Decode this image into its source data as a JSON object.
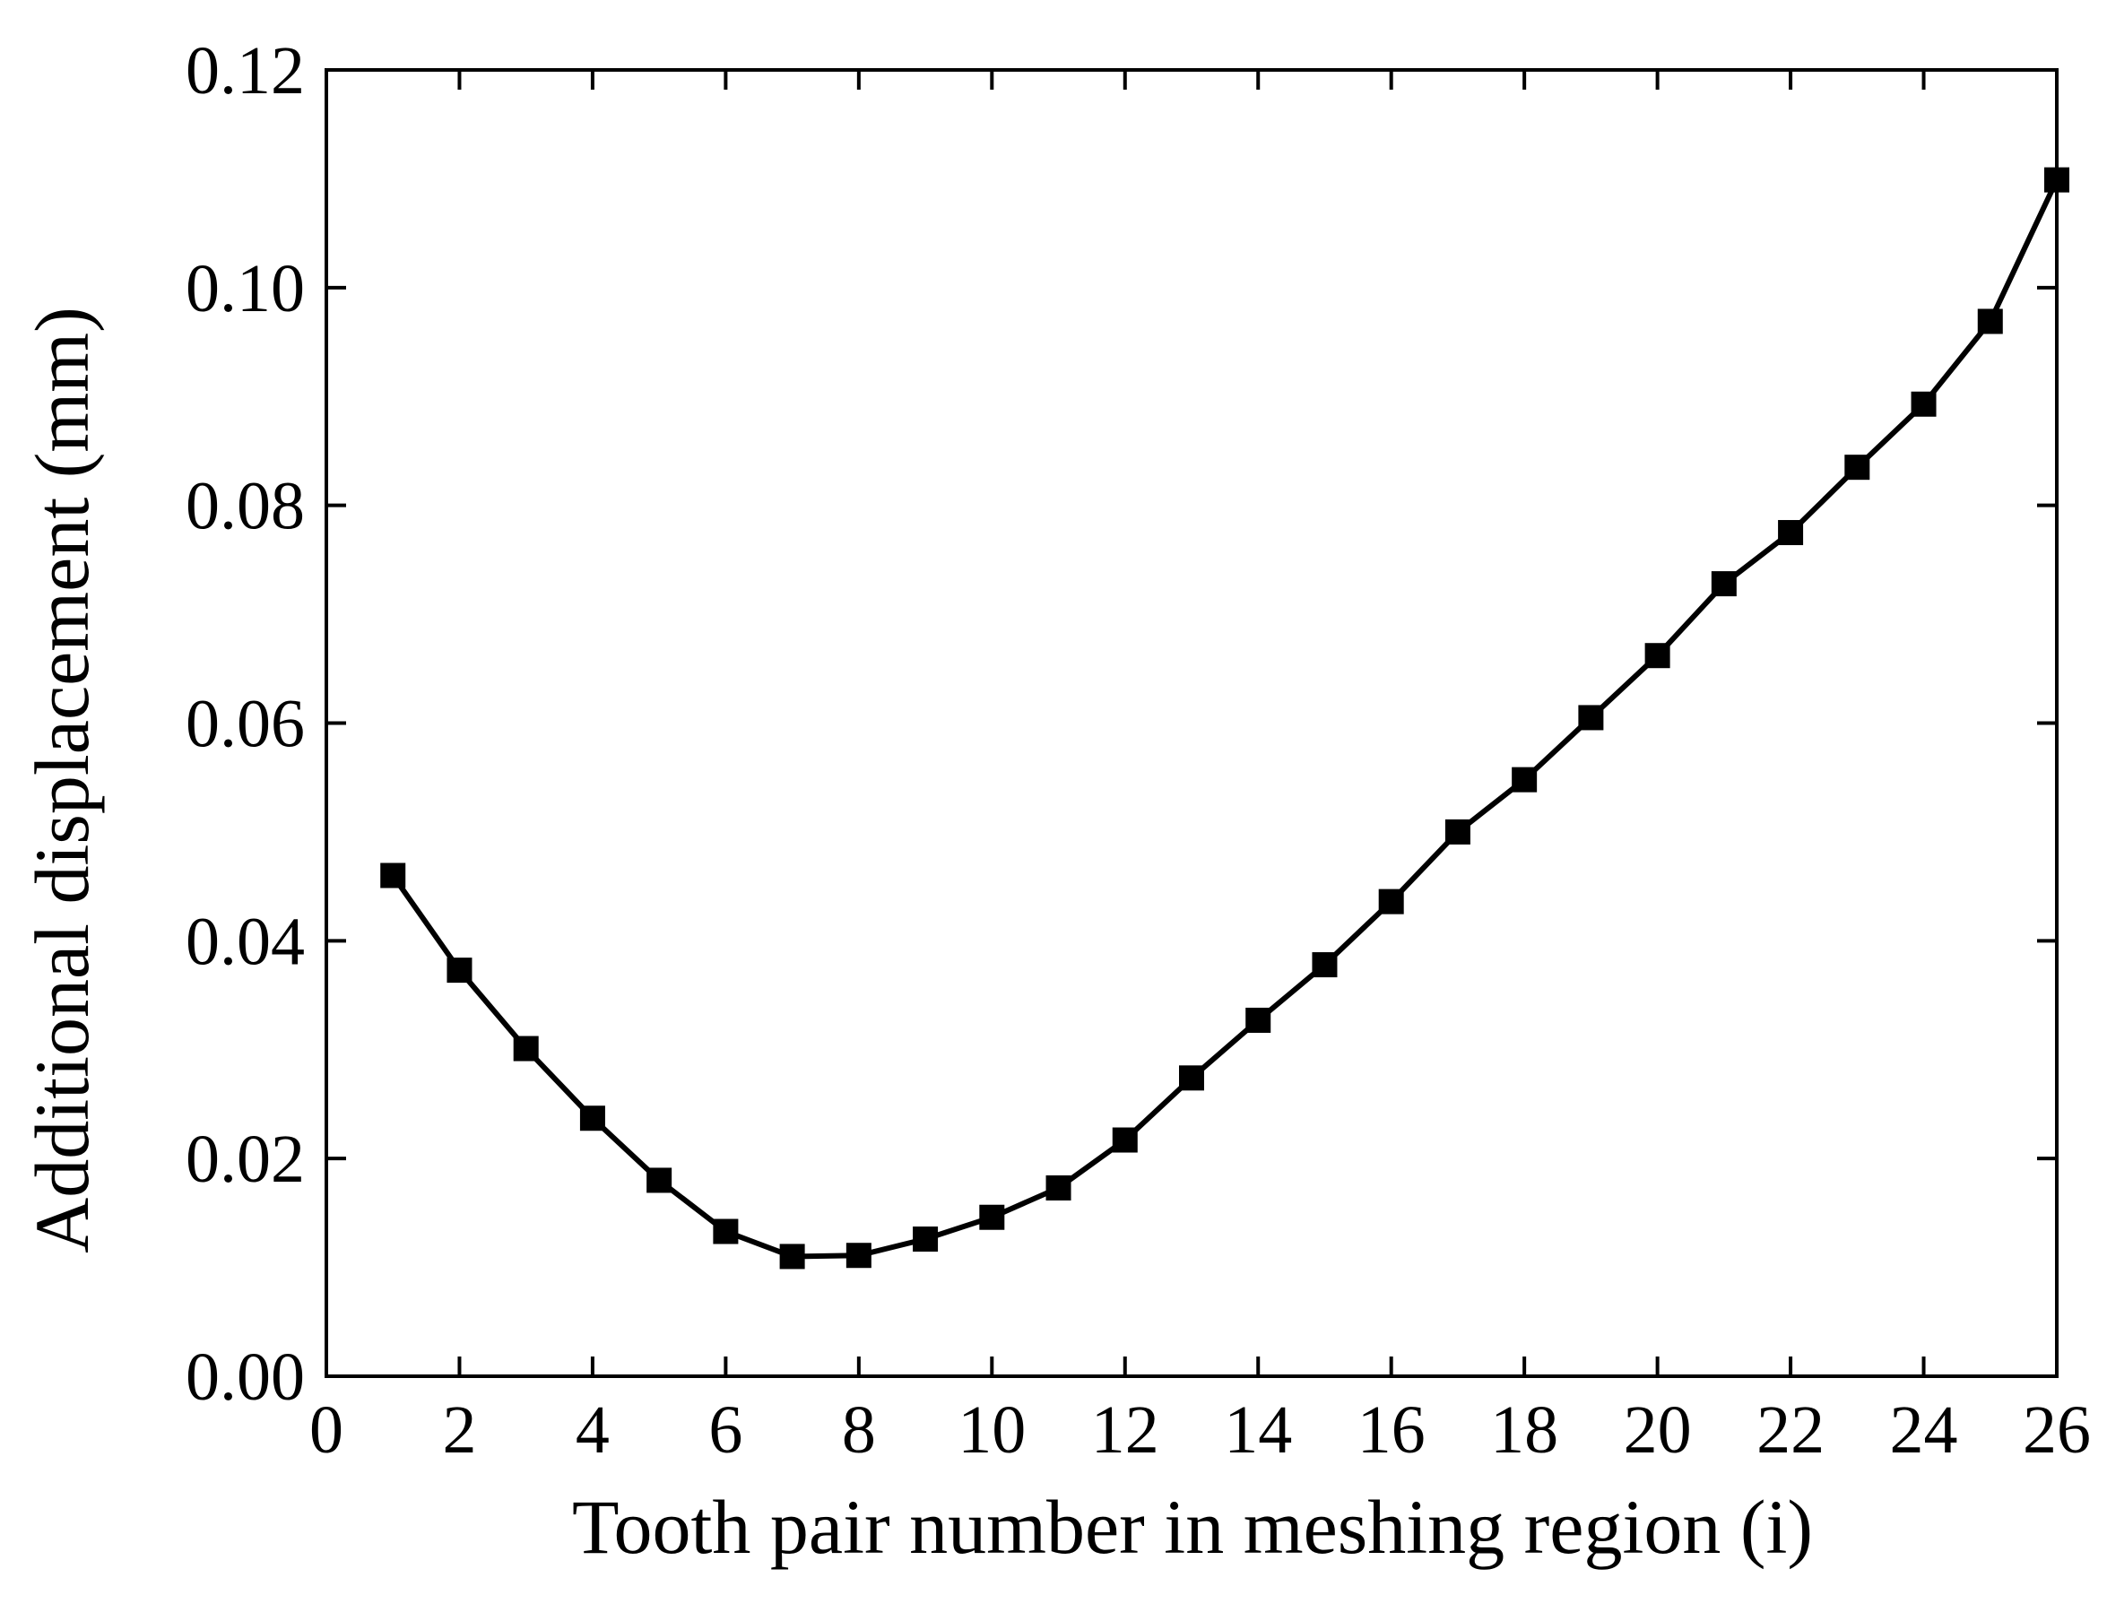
{
  "chart_data": {
    "type": "line",
    "x_label": "Tooth pair number in meshing region (i)",
    "y_label": "Additional displacement (mm)",
    "x": [
      1,
      2,
      3,
      4,
      5,
      6,
      7,
      8,
      9,
      10,
      11,
      12,
      13,
      14,
      15,
      16,
      17,
      18,
      19,
      20,
      21,
      22,
      23,
      24,
      25,
      26
    ],
    "series": [
      {
        "color": "#000000",
        "marker": "square",
        "values": [
          0.046,
          0.0373,
          0.0301,
          0.0237,
          0.018,
          0.0133,
          0.011,
          0.0111,
          0.0126,
          0.0146,
          0.0173,
          0.0217,
          0.0274,
          0.0327,
          0.0378,
          0.0436,
          0.05,
          0.0548,
          0.0605,
          0.0662,
          0.0728,
          0.0775,
          0.0835,
          0.0893,
          0.0969,
          0.1099
        ]
      }
    ],
    "xlim": [
      0,
      26
    ],
    "xticks": [
      0,
      2,
      4,
      6,
      8,
      10,
      12,
      14,
      16,
      18,
      20,
      22,
      24,
      26
    ],
    "ylim": [
      0,
      0.12
    ],
    "yticks": [
      {
        "value": 0,
        "label": "0.00"
      },
      {
        "value": 0.02,
        "label": "0.02"
      },
      {
        "value": 0.04,
        "label": "0.04"
      },
      {
        "value": 0.06,
        "label": "0.06"
      },
      {
        "value": 0.08,
        "label": "0.08"
      },
      {
        "value": 0.1,
        "label": "0.10"
      },
      {
        "value": 0.12,
        "label": "0.12"
      }
    ],
    "grid": false
  }
}
